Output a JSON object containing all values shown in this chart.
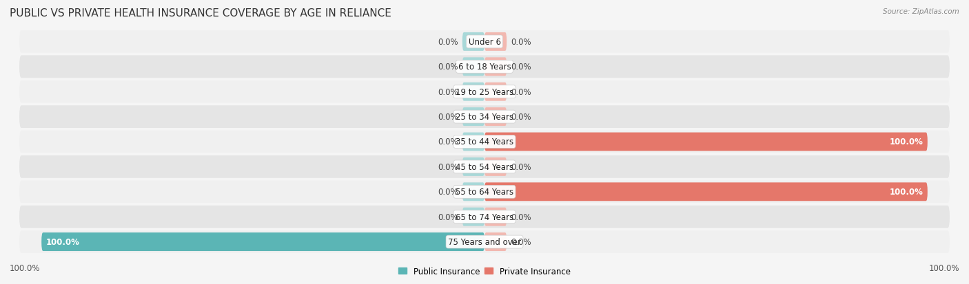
{
  "title": "PUBLIC VS PRIVATE HEALTH INSURANCE COVERAGE BY AGE IN RELIANCE",
  "source": "Source: ZipAtlas.com",
  "age_groups": [
    "Under 6",
    "6 to 18 Years",
    "19 to 25 Years",
    "25 to 34 Years",
    "35 to 44 Years",
    "45 to 54 Years",
    "55 to 64 Years",
    "65 to 74 Years",
    "75 Years and over"
  ],
  "public_values": [
    0.0,
    0.0,
    0.0,
    0.0,
    0.0,
    0.0,
    0.0,
    0.0,
    100.0
  ],
  "private_values": [
    0.0,
    0.0,
    0.0,
    0.0,
    100.0,
    0.0,
    100.0,
    0.0,
    0.0
  ],
  "public_color": "#5bb5b5",
  "private_color": "#e5776a",
  "public_color_light": "#a8d8d8",
  "private_color_light": "#f2b8b0",
  "row_bg_light": "#f0f0f0",
  "row_bg_dark": "#e5e5e5",
  "background_color": "#f5f5f5",
  "title_fontsize": 11,
  "label_fontsize": 8.5,
  "tick_fontsize": 8.5,
  "bar_stub": 5.0,
  "xlim_abs": 105
}
